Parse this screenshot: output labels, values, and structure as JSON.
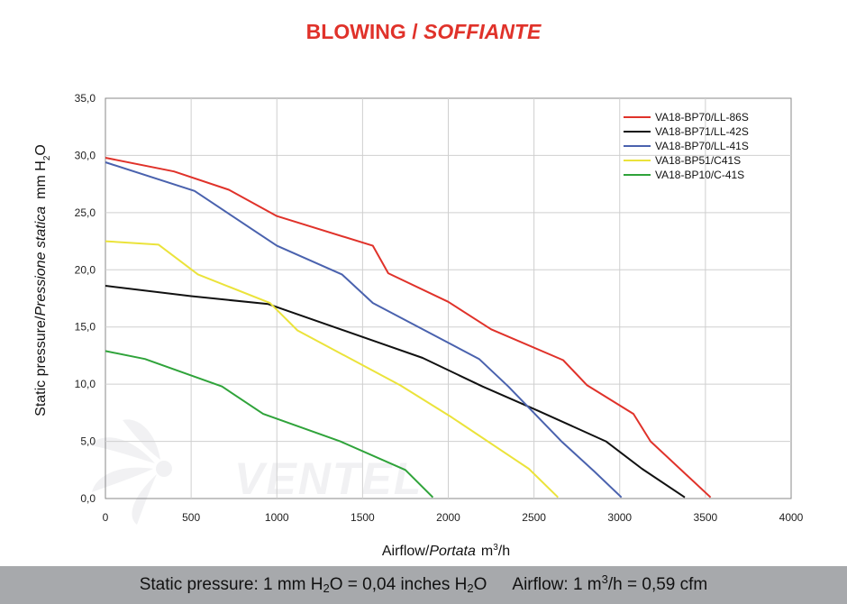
{
  "chart_data": {
    "type": "line",
    "title": "BLOWING /",
    "title_italic": "SOFFIANTE",
    "xlabel": "Airflow",
    "xlabel_italic": "Portata",
    "xlabel_unit_base": "m",
    "xlabel_unit_sup": "3",
    "xlabel_unit_tail": "/h",
    "ylabel": "Static pressure",
    "ylabel_italic": "Pressione statica",
    "ylabel_unit_base": "mm  H",
    "ylabel_unit_sub": "2",
    "ylabel_unit_tail": "O",
    "separator": "/",
    "xlim": [
      0,
      4000
    ],
    "ylim": [
      0,
      35
    ],
    "x_ticks": [
      "0",
      "500",
      "1000",
      "1500",
      "2000",
      "2500",
      "3000",
      "3500",
      "4000"
    ],
    "x_tick_values": [
      0,
      500,
      1000,
      1500,
      2000,
      2500,
      3000,
      3500,
      4000
    ],
    "y_ticks": [
      "0,0",
      "5,0",
      "10,0",
      "15,0",
      "20,0",
      "25,0",
      "30,0",
      "35,0"
    ],
    "y_tick_values": [
      0,
      5,
      10,
      15,
      20,
      25,
      30,
      35
    ],
    "grid": true,
    "legend_position": "top-right",
    "series": [
      {
        "name": "VA18-BP70/LL-86S",
        "color": "#e0322a",
        "points": [
          [
            0,
            29.8
          ],
          [
            400,
            28.6
          ],
          [
            720,
            27.0
          ],
          [
            1000,
            24.7
          ],
          [
            1560,
            22.1
          ],
          [
            1650,
            19.7
          ],
          [
            2000,
            17.2
          ],
          [
            2250,
            14.8
          ],
          [
            2670,
            12.1
          ],
          [
            2810,
            9.9
          ],
          [
            3080,
            7.4
          ],
          [
            3180,
            5.0
          ],
          [
            3530,
            0.1
          ]
        ]
      },
      {
        "name": "VA18-BP71/LL-42S",
        "color": "#111111",
        "points": [
          [
            0,
            18.6
          ],
          [
            500,
            17.7
          ],
          [
            950,
            17.0
          ],
          [
            1850,
            12.3
          ],
          [
            2200,
            9.8
          ],
          [
            2520,
            7.7
          ],
          [
            2920,
            5.0
          ],
          [
            3130,
            2.6
          ],
          [
            3380,
            0.1
          ]
        ]
      },
      {
        "name": "VA18-BP70/LL-41S",
        "color": "#4a62ae",
        "points": [
          [
            0,
            29.4
          ],
          [
            520,
            26.9
          ],
          [
            740,
            24.7
          ],
          [
            1000,
            22.1
          ],
          [
            1380,
            19.6
          ],
          [
            1560,
            17.1
          ],
          [
            2180,
            12.2
          ],
          [
            2350,
            9.8
          ],
          [
            2660,
            5.0
          ],
          [
            2850,
            2.4
          ],
          [
            3010,
            0.1
          ]
        ]
      },
      {
        "name": "VA18-BP51/C41S",
        "color": "#ebe33b",
        "points": [
          [
            0,
            22.5
          ],
          [
            310,
            22.2
          ],
          [
            540,
            19.6
          ],
          [
            960,
            17.1
          ],
          [
            1120,
            14.7
          ],
          [
            1720,
            9.9
          ],
          [
            2020,
            7.1
          ],
          [
            2470,
            2.6
          ],
          [
            2640,
            0.1
          ]
        ]
      },
      {
        "name": "VA18-BP10/C-41S",
        "color": "#2fa33a",
        "points": [
          [
            0,
            12.9
          ],
          [
            230,
            12.2
          ],
          [
            680,
            9.8
          ],
          [
            920,
            7.4
          ],
          [
            1370,
            5.0
          ],
          [
            1750,
            2.5
          ],
          [
            1910,
            0.1
          ]
        ]
      }
    ]
  },
  "watermark": {
    "text": "VENTEL"
  },
  "footer": {
    "pressure_a": "Static pressure: 1 mm H",
    "pressure_sub1": "2",
    "pressure_b": "O = 0,04 inches H",
    "pressure_sub2": "2",
    "pressure_c": "O",
    "airflow_a": "Airflow: 1 m",
    "airflow_sup": "3",
    "airflow_b": "/h = 0,59 cfm"
  }
}
